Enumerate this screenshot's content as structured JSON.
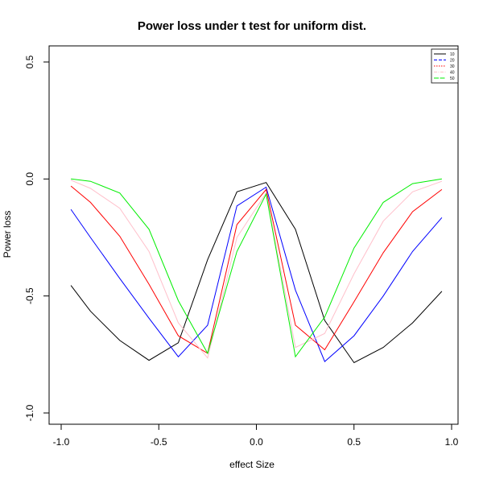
{
  "chart_data": {
    "type": "line",
    "title": "Power loss under t test for uniform dist.",
    "xlabel": "effect Size",
    "ylabel": "Power loss",
    "xlim": [
      -1.0,
      1.0
    ],
    "ylim": [
      -1.0,
      0.5
    ],
    "xticks": [
      "-1.0",
      "-0.5",
      "0.0",
      "0.5",
      "1.0"
    ],
    "yticks": [
      "-1.0",
      "-0.5",
      "0.0",
      "0.5"
    ],
    "legend_position": "top-right",
    "x": [
      -0.95,
      -0.85,
      -0.7,
      -0.55,
      -0.4,
      -0.25,
      -0.1,
      0.05,
      0.2,
      0.35,
      0.5,
      0.65,
      0.8,
      0.95
    ],
    "series": [
      {
        "name": "10",
        "color": "#000000",
        "values": [
          -0.455,
          -0.565,
          -0.69,
          -0.775,
          -0.7,
          -0.345,
          -0.055,
          -0.015,
          -0.215,
          -0.605,
          -0.785,
          -0.72,
          -0.615,
          -0.48
        ]
      },
      {
        "name": "20",
        "color": "#0000ff",
        "values": [
          -0.13,
          -0.25,
          -0.425,
          -0.595,
          -0.76,
          -0.625,
          -0.115,
          -0.035,
          -0.475,
          -0.78,
          -0.67,
          -0.5,
          -0.31,
          -0.165
        ]
      },
      {
        "name": "30",
        "color": "#ff0000",
        "values": [
          -0.03,
          -0.1,
          -0.245,
          -0.45,
          -0.67,
          -0.745,
          -0.195,
          -0.045,
          -0.625,
          -0.73,
          -0.525,
          -0.315,
          -0.14,
          -0.045
        ]
      },
      {
        "name": "40",
        "color": "#ffc0cb",
        "values": [
          -0.005,
          -0.04,
          -0.125,
          -0.31,
          -0.615,
          -0.765,
          -0.25,
          -0.06,
          -0.72,
          -0.66,
          -0.405,
          -0.18,
          -0.055,
          -0.01
        ]
      },
      {
        "name": "50",
        "color": "#00ee00",
        "values": [
          0.0,
          -0.01,
          -0.06,
          -0.215,
          -0.52,
          -0.745,
          -0.31,
          -0.065,
          -0.76,
          -0.59,
          -0.295,
          -0.1,
          -0.02,
          0.0
        ]
      }
    ]
  }
}
